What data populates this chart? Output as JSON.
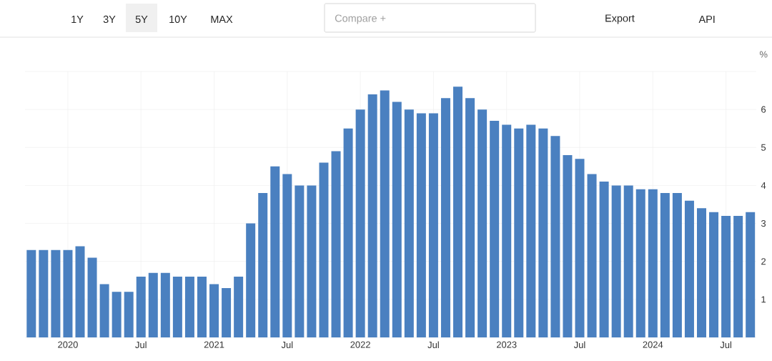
{
  "chart_data": {
    "type": "bar",
    "ylabel": "%",
    "annotations": [
      "1Y",
      "3Y",
      "5Y",
      "10Y",
      "MAX",
      "Compare +",
      "Export",
      "API"
    ],
    "x": [
      "2019-10",
      "2019-11",
      "2019-12",
      "2020-01",
      "2020-02",
      "2020-03",
      "2020-04",
      "2020-05",
      "2020-06",
      "2020-07",
      "2020-08",
      "2020-09",
      "2020-10",
      "2020-11",
      "2020-12",
      "2021-01",
      "2021-02",
      "2021-03",
      "2021-04",
      "2021-05",
      "2021-06",
      "2021-07",
      "2021-08",
      "2021-09",
      "2021-10",
      "2021-11",
      "2021-12",
      "2022-01",
      "2022-02",
      "2022-03",
      "2022-04",
      "2022-05",
      "2022-06",
      "2022-07",
      "2022-08",
      "2022-09",
      "2022-10",
      "2022-11",
      "2022-12",
      "2023-01",
      "2023-02",
      "2023-03",
      "2023-04",
      "2023-05",
      "2023-06",
      "2023-07",
      "2023-08",
      "2023-09",
      "2023-10",
      "2023-11",
      "2023-12",
      "2024-01",
      "2024-02",
      "2024-03",
      "2024-04",
      "2024-05",
      "2024-06",
      "2024-07",
      "2024-08",
      "2024-09"
    ],
    "values": [
      2.3,
      2.3,
      2.3,
      2.3,
      2.4,
      2.1,
      1.4,
      1.2,
      1.2,
      1.6,
      1.7,
      1.7,
      1.6,
      1.6,
      1.6,
      1.4,
      1.3,
      1.6,
      3.0,
      3.8,
      4.5,
      4.3,
      4.0,
      4.0,
      4.6,
      4.9,
      5.5,
      6.0,
      6.4,
      6.5,
      6.2,
      6.0,
      5.9,
      5.9,
      6.3,
      6.6,
      6.3,
      6.0,
      5.7,
      5.6,
      5.5,
      5.6,
      5.5,
      5.3,
      4.8,
      4.7,
      4.3,
      4.1,
      4.0,
      4.0,
      3.9,
      3.9,
      3.8,
      3.8,
      3.6,
      3.4,
      3.3,
      3.2,
      3.2,
      3.3
    ],
    "color": "#4a80c0",
    "xlim": [
      "2019-09-16",
      "2024-09-16"
    ],
    "xticks": [
      {
        "value": "2020-01",
        "label": "2020"
      },
      {
        "value": "2020-07",
        "label": "Jul"
      },
      {
        "value": "2021-01",
        "label": "2021"
      },
      {
        "value": "2021-07",
        "label": "Jul"
      },
      {
        "value": "2022-01",
        "label": "2022"
      },
      {
        "value": "2022-07",
        "label": "Jul"
      },
      {
        "value": "2023-01",
        "label": "2023"
      },
      {
        "value": "2023-07",
        "label": "Jul"
      },
      {
        "value": "2024-01",
        "label": "2024"
      },
      {
        "value": "2024-07",
        "label": "Jul"
      }
    ],
    "ylim": [
      0,
      7
    ],
    "yticks": [
      {
        "value": 0,
        "label": null
      },
      1,
      2,
      3,
      4,
      5,
      6,
      {
        "value": 7,
        "label": null
      }
    ],
    "grid": true
  }
}
